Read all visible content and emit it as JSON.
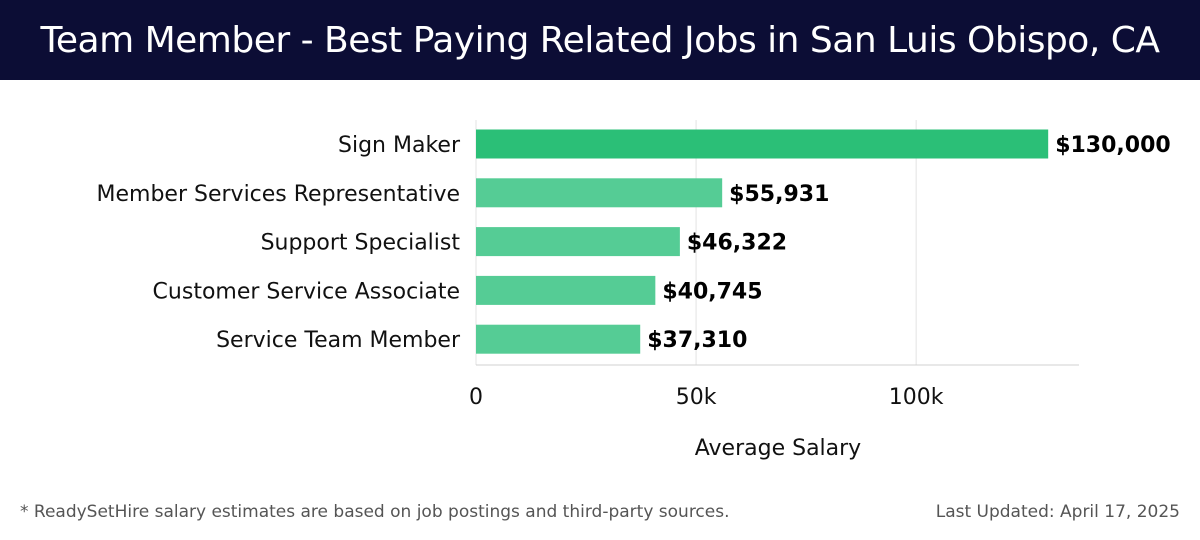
{
  "header": {
    "title": "Team Member - Best Paying Related Jobs in San Luis Obispo, CA"
  },
  "chart_data": {
    "type": "bar",
    "orientation": "horizontal",
    "categories": [
      "Sign Maker",
      "Member Services Representative",
      "Support Specialist",
      "Customer Service Associate",
      "Service Team Member"
    ],
    "values": [
      130000,
      55931,
      46322,
      40745,
      37310
    ],
    "value_labels": [
      "$130,000",
      "$55,931",
      "$46,322",
      "$40,745",
      "$37,310"
    ],
    "xlabel": "Average Salary",
    "ylabel": "",
    "xlim": [
      0,
      137000
    ],
    "x_ticks": [
      0,
      50000,
      100000
    ],
    "x_tick_labels": [
      "0",
      "50k",
      "100k"
    ],
    "grid": true,
    "colors": {
      "highlight": "#2bbf77",
      "bar": "#55cc95",
      "grid": "#e3e3e3"
    }
  },
  "footer": {
    "note": "* ReadySetHire salary estimates are based on job postings and third-party sources.",
    "updated": "Last Updated: April 17, 2025"
  }
}
